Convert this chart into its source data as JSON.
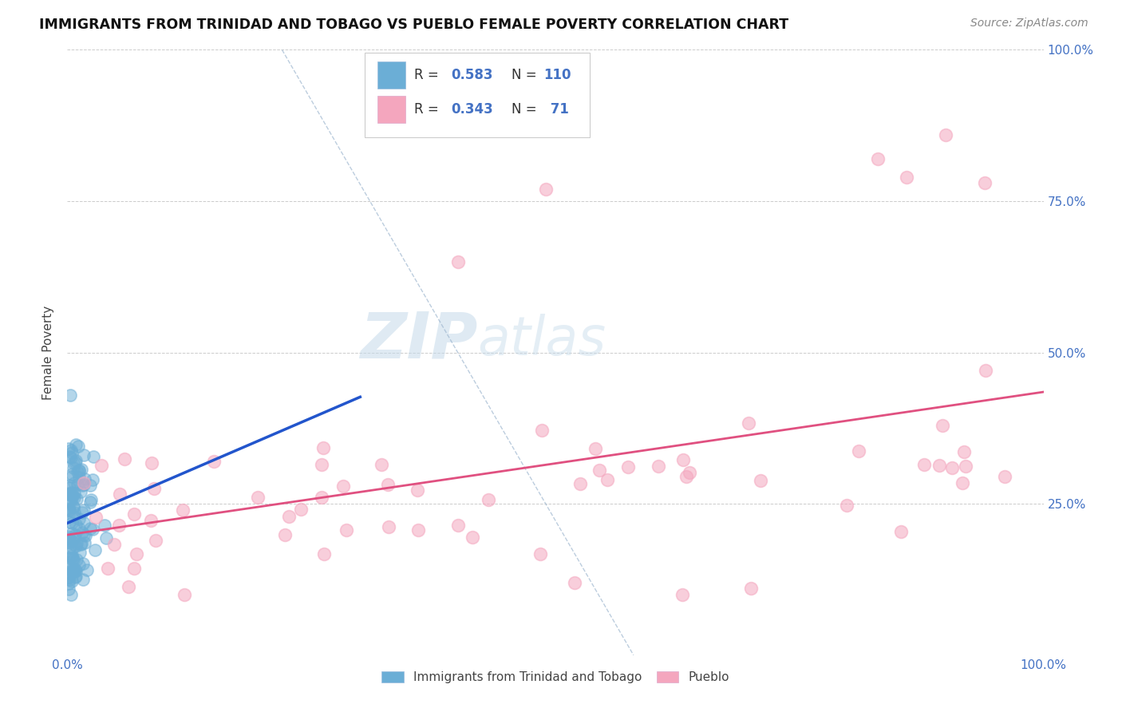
{
  "title": "IMMIGRANTS FROM TRINIDAD AND TOBAGO VS PUEBLO FEMALE POVERTY CORRELATION CHART",
  "source": "Source: ZipAtlas.com",
  "ylabel": "Female Poverty",
  "xlim": [
    0.0,
    1.0
  ],
  "ylim": [
    0.0,
    1.0
  ],
  "color_blue": "#6baed6",
  "color_pink": "#f4a6be",
  "color_blue_text": "#4472c4",
  "color_pink_text": "#e05080",
  "regression_line_color_blue": "#2255cc",
  "regression_line_color_pink": "#e05080",
  "dashed_line_color": "#a0b8d0",
  "background_color": "#ffffff",
  "legend_label1": "Immigrants from Trinidad and Tobago",
  "legend_label2": "Pueblo"
}
